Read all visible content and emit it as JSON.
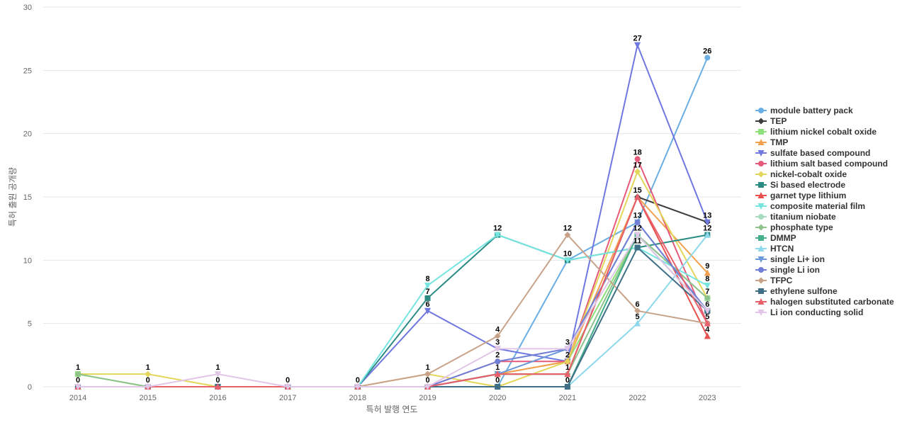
{
  "chart_data": {
    "type": "line",
    "title": "",
    "xlabel": "특허 발행 연도",
    "ylabel": "특허 출원 공개량",
    "x": [
      "2014",
      "2015",
      "2016",
      "2017",
      "2018",
      "2019",
      "2020",
      "2021",
      "2022",
      "2023"
    ],
    "ylim": [
      0,
      30
    ],
    "yticks": [
      0,
      5,
      10,
      15,
      20,
      25,
      30
    ],
    "grid": true,
    "legend": "right",
    "series": [
      {
        "name": "module battery pack",
        "color": "#6aaee3",
        "marker": "circle",
        "values": [
          0,
          0,
          0,
          0,
          0,
          0,
          0,
          10,
          13,
          26
        ]
      },
      {
        "name": "TEP",
        "color": "#3d3d3d",
        "marker": "diamond",
        "values": [
          0,
          0,
          0,
          0,
          0,
          0,
          1,
          1,
          15,
          13
        ]
      },
      {
        "name": "lithium nickel cobalt oxide",
        "color": "#8de07a",
        "marker": "square",
        "values": [
          1,
          0,
          0,
          0,
          0,
          0,
          1,
          2,
          12,
          7
        ]
      },
      {
        "name": "TMP",
        "color": "#f3a04e",
        "marker": "triangle",
        "values": [
          0,
          0,
          0,
          0,
          0,
          0,
          1,
          2,
          15,
          9
        ]
      },
      {
        "name": "sulfate based compound",
        "color": "#6f77e0",
        "marker": "triangle-down",
        "values": [
          0,
          0,
          0,
          0,
          0,
          6,
          3,
          2,
          27,
          13
        ]
      },
      {
        "name": "lithium salt based compound",
        "color": "#e55a7a",
        "marker": "circle",
        "values": [
          0,
          0,
          0,
          0,
          0,
          0,
          2,
          2,
          18,
          5
        ]
      },
      {
        "name": "nickel-cobalt oxide",
        "color": "#e3d65a",
        "marker": "diamond",
        "values": [
          1,
          1,
          0,
          0,
          0,
          1,
          0,
          2,
          17,
          7
        ]
      },
      {
        "name": "Si based electrode",
        "color": "#2a8a84",
        "marker": "square",
        "values": [
          0,
          0,
          0,
          0,
          0,
          7,
          12,
          10,
          11,
          12
        ]
      },
      {
        "name": "garnet type lithium",
        "color": "#e85050",
        "marker": "triangle",
        "values": [
          0,
          0,
          0,
          0,
          0,
          0,
          1,
          1,
          15,
          4
        ]
      },
      {
        "name": "composite material film",
        "color": "#76e5e0",
        "marker": "triangle-down",
        "values": [
          0,
          0,
          0,
          0,
          0,
          8,
          12,
          10,
          11,
          8
        ]
      },
      {
        "name": "titanium niobate",
        "color": "#a8dcc0",
        "marker": "circle",
        "values": [
          0,
          0,
          0,
          0,
          0,
          0,
          0,
          0,
          12,
          7
        ]
      },
      {
        "name": "phosphate type",
        "color": "#8ec28a",
        "marker": "diamond",
        "values": [
          1,
          0,
          0,
          0,
          0,
          0,
          1,
          1,
          12,
          7
        ]
      },
      {
        "name": "DMMP",
        "color": "#44b08a",
        "marker": "square",
        "values": [
          0,
          0,
          0,
          0,
          0,
          0,
          0,
          0,
          12,
          6
        ]
      },
      {
        "name": "HTCN",
        "color": "#8ed8ec",
        "marker": "triangle",
        "values": [
          0,
          0,
          0,
          0,
          0,
          0,
          0,
          0,
          5,
          12
        ]
      },
      {
        "name": "single Li+ ion",
        "color": "#6a98d8",
        "marker": "triangle-down",
        "values": [
          0,
          0,
          0,
          0,
          0,
          0,
          1,
          3,
          13,
          6
        ]
      },
      {
        "name": "single Li ion",
        "color": "#6f7fd6",
        "marker": "circle",
        "values": [
          0,
          0,
          0,
          0,
          0,
          0,
          2,
          3,
          13,
          6
        ]
      },
      {
        "name": "TFPC",
        "color": "#c8a38a",
        "marker": "diamond",
        "values": [
          0,
          0,
          0,
          0,
          0,
          1,
          4,
          12,
          6,
          5
        ]
      },
      {
        "name": "ethylene sulfone",
        "color": "#3f6f86",
        "marker": "square",
        "values": [
          0,
          0,
          0,
          0,
          0,
          0,
          0,
          0,
          11,
          6
        ]
      },
      {
        "name": "halogen substituted carbonate",
        "color": "#e8606a",
        "marker": "triangle",
        "values": [
          0,
          0,
          0,
          0,
          0,
          0,
          1,
          1,
          15,
          5
        ]
      },
      {
        "name": "Li ion conducting solid",
        "color": "#e2c6e8",
        "marker": "triangle-down",
        "values": [
          0,
          0,
          1,
          0,
          0,
          0,
          3,
          3,
          12,
          6
        ]
      }
    ],
    "data_labels": [
      {
        "x": "2014",
        "value": 1
      },
      {
        "x": "2014",
        "value": 0
      },
      {
        "x": "2015",
        "value": 1
      },
      {
        "x": "2015",
        "value": 0
      },
      {
        "x": "2016",
        "value": 1
      },
      {
        "x": "2016",
        "value": 0
      },
      {
        "x": "2017",
        "value": 0
      },
      {
        "x": "2018",
        "value": 0
      },
      {
        "x": "2019",
        "value": 8
      },
      {
        "x": "2019",
        "value": 7
      },
      {
        "x": "2019",
        "value": 6
      },
      {
        "x": "2019",
        "value": 1
      },
      {
        "x": "2019",
        "value": 0
      },
      {
        "x": "2020",
        "value": 12
      },
      {
        "x": "2020",
        "value": 4
      },
      {
        "x": "2020",
        "value": 3
      },
      {
        "x": "2020",
        "value": 2
      },
      {
        "x": "2020",
        "value": 1
      },
      {
        "x": "2020",
        "value": 0
      },
      {
        "x": "2021",
        "value": 12
      },
      {
        "x": "2021",
        "value": 10
      },
      {
        "x": "2021",
        "value": 3
      },
      {
        "x": "2021",
        "value": 2
      },
      {
        "x": "2021",
        "value": 1
      },
      {
        "x": "2021",
        "value": 0
      },
      {
        "x": "2022",
        "value": 27
      },
      {
        "x": "2022",
        "value": 18
      },
      {
        "x": "2022",
        "value": 17
      },
      {
        "x": "2022",
        "value": 15
      },
      {
        "x": "2022",
        "value": 13
      },
      {
        "x": "2022",
        "value": 12
      },
      {
        "x": "2022",
        "value": 11
      },
      {
        "x": "2022",
        "value": 6
      },
      {
        "x": "2022",
        "value": 5
      },
      {
        "x": "2023",
        "value": 26
      },
      {
        "x": "2023",
        "value": 13
      },
      {
        "x": "2023",
        "value": 12
      },
      {
        "x": "2023",
        "value": 9
      },
      {
        "x": "2023",
        "value": 8
      },
      {
        "x": "2023",
        "value": 7
      },
      {
        "x": "2023",
        "value": 6
      },
      {
        "x": "2023",
        "value": 5
      },
      {
        "x": "2023",
        "value": 4
      }
    ]
  }
}
